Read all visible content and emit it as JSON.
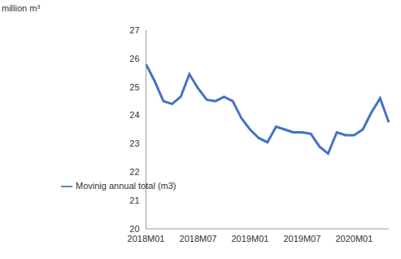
{
  "chart_data": {
    "type": "line",
    "y_label": "million m³",
    "categories": [
      "2018M01",
      null,
      null,
      null,
      null,
      null,
      "2018M07",
      null,
      null,
      null,
      null,
      null,
      "2019M01",
      null,
      null,
      null,
      null,
      null,
      "2019M07",
      null,
      null,
      null,
      null,
      null,
      "2020M01",
      null,
      null,
      null,
      null
    ],
    "series": [
      {
        "name": "Movinig annual total (m3)",
        "color": "#4472c4",
        "values": [
          25.8,
          25.2,
          24.5,
          24.4,
          24.65,
          25.45,
          24.95,
          24.55,
          24.5,
          24.65,
          24.5,
          23.9,
          23.5,
          23.2,
          23.05,
          23.6,
          23.5,
          23.4,
          23.4,
          23.35,
          22.9,
          22.65,
          23.4,
          23.3,
          23.3,
          23.5,
          24.1,
          24.6,
          23.75
        ]
      }
    ],
    "ylim": [
      20,
      27
    ],
    "yticks": [
      20,
      21,
      22,
      23,
      24,
      25,
      26,
      27
    ],
    "grid": false,
    "legend": "left"
  }
}
